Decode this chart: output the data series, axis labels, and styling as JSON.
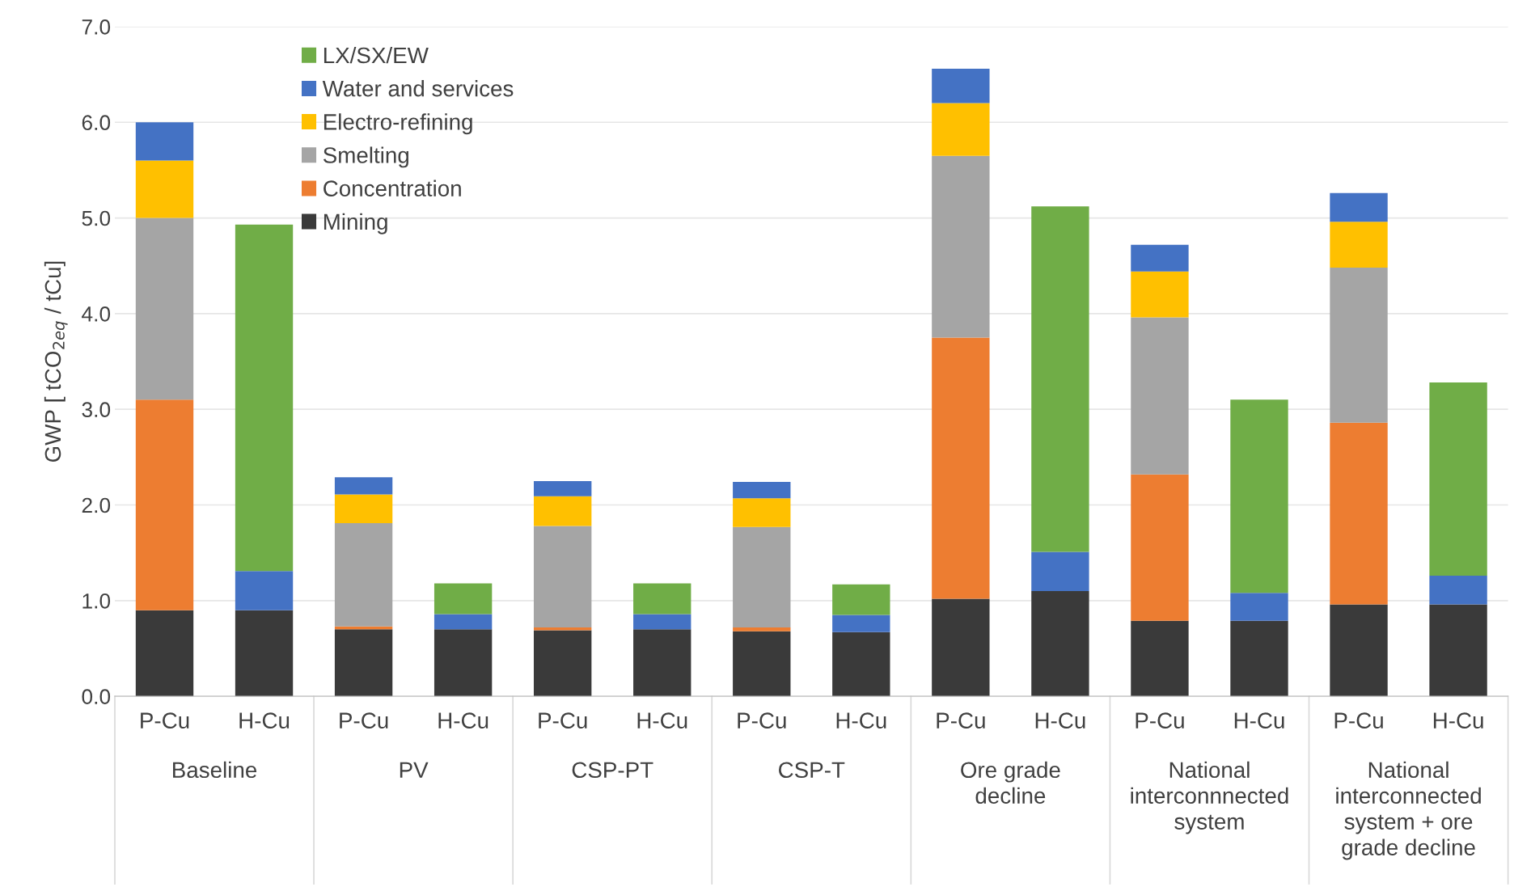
{
  "chart_data": {
    "type": "bar",
    "stacked": true,
    "ylabel": "GWP [ tCO$_{2eq}$ / tCu]",
    "categories": [
      "P-Cu",
      "H-Cu",
      "P-Cu",
      "H-Cu",
      "P-Cu",
      "H-Cu",
      "P-Cu",
      "H-Cu",
      "P-Cu",
      "H-Cu",
      "P-Cu",
      "H-Cu",
      "P-Cu",
      "H-Cu"
    ],
    "annotations": [
      "Baseline",
      "PV",
      "CSP-PT",
      "CSP-T",
      "Ore grade\ndecline",
      "National\ninterconnnected\nsystem",
      "National\ninterconnected\nsystem + ore\ngrade decline"
    ],
    "ylim": [
      0,
      7
    ],
    "yticks": [
      {
        "value": 0,
        "label": "0.0"
      },
      {
        "value": 1,
        "label": "1.0"
      },
      {
        "value": 2,
        "label": "2.0"
      },
      {
        "value": 3,
        "label": "3.0"
      },
      {
        "value": 4,
        "label": "4.0"
      },
      {
        "value": 5,
        "label": "5.0"
      },
      {
        "value": 6,
        "label": "6.0"
      },
      {
        "value": 7,
        "label": "7.0"
      }
    ],
    "grid": "y",
    "legend": "top left",
    "series": [
      {
        "name": "Mining",
        "color": "#3a3a3a",
        "values": [
          0.9,
          0.9,
          0.7,
          0.7,
          0.69,
          0.7,
          0.68,
          0.67,
          1.02,
          1.1,
          0.79,
          0.79,
          0.96,
          0.96
        ]
      },
      {
        "name": "Concentration",
        "color": "#ed7d31",
        "values": [
          2.2,
          null,
          0.03,
          null,
          0.03,
          null,
          0.04,
          null,
          2.73,
          null,
          1.53,
          null,
          1.9,
          null
        ]
      },
      {
        "name": "Smelting",
        "color": "#a5a5a5",
        "values": [
          1.9,
          null,
          1.08,
          null,
          1.06,
          null,
          1.05,
          null,
          1.9,
          null,
          1.64,
          null,
          1.62,
          null
        ]
      },
      {
        "name": "Electro-refining",
        "color": "#ffc000",
        "values": [
          0.6,
          null,
          0.3,
          null,
          0.31,
          null,
          0.3,
          null,
          0.55,
          null,
          0.48,
          null,
          0.48,
          null
        ]
      },
      {
        "name": "Water and services",
        "color": "#4472c4",
        "values": [
          0.4,
          0.41,
          0.18,
          0.16,
          0.16,
          0.16,
          0.17,
          0.18,
          0.36,
          0.41,
          0.28,
          0.29,
          0.3,
          0.3
        ]
      },
      {
        "name": "LX/SX/EW",
        "color": "#70ad47",
        "values": [
          null,
          3.62,
          null,
          0.32,
          null,
          0.32,
          null,
          0.32,
          null,
          3.61,
          null,
          2.02,
          null,
          2.02
        ]
      }
    ]
  }
}
